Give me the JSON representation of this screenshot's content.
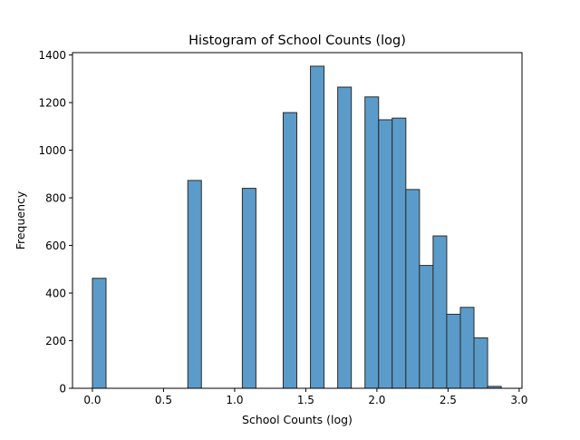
{
  "chart_data": {
    "type": "bar",
    "title": "Histogram of School Counts (log)",
    "xlabel": "School Counts (log)",
    "ylabel": "Frequency",
    "xlim": [
      -0.14,
      3.02
    ],
    "ylim": [
      0,
      1410
    ],
    "xticks": [
      0.0,
      0.5,
      1.0,
      1.5,
      2.0,
      2.5,
      3.0
    ],
    "xtick_labels": [
      "0.0",
      "0.5",
      "1.0",
      "1.5",
      "2.0",
      "2.5",
      "3.0"
    ],
    "yticks": [
      0,
      200,
      400,
      600,
      800,
      1000,
      1200,
      1400
    ],
    "ytick_labels": [
      "0",
      "200",
      "400",
      "600",
      "800",
      "1000",
      "1200",
      "1400"
    ],
    "bin_width": 0.0958,
    "bin_starts": [
      0.0,
      0.0958,
      0.1916,
      0.2874,
      0.3832,
      0.479,
      0.5748,
      0.6706,
      0.7664,
      0.8622,
      0.958,
      1.0538,
      1.1496,
      1.2454,
      1.3412,
      1.437,
      1.5328,
      1.6286,
      1.7244,
      1.8202,
      1.916,
      2.0118,
      2.1076,
      2.2034,
      2.2992,
      2.395,
      2.4908,
      2.5866,
      2.6824,
      2.7782
    ],
    "values": [
      462,
      0,
      0,
      0,
      0,
      0,
      0,
      873,
      0,
      0,
      0,
      840,
      0,
      0,
      1158,
      0,
      1353,
      0,
      1265,
      0,
      1224,
      1128,
      1135,
      835,
      516,
      640,
      311,
      340,
      212,
      8
    ],
    "bar_color": "#5b9bc9",
    "edge_color": "#2b2b2b",
    "grid": false
  }
}
